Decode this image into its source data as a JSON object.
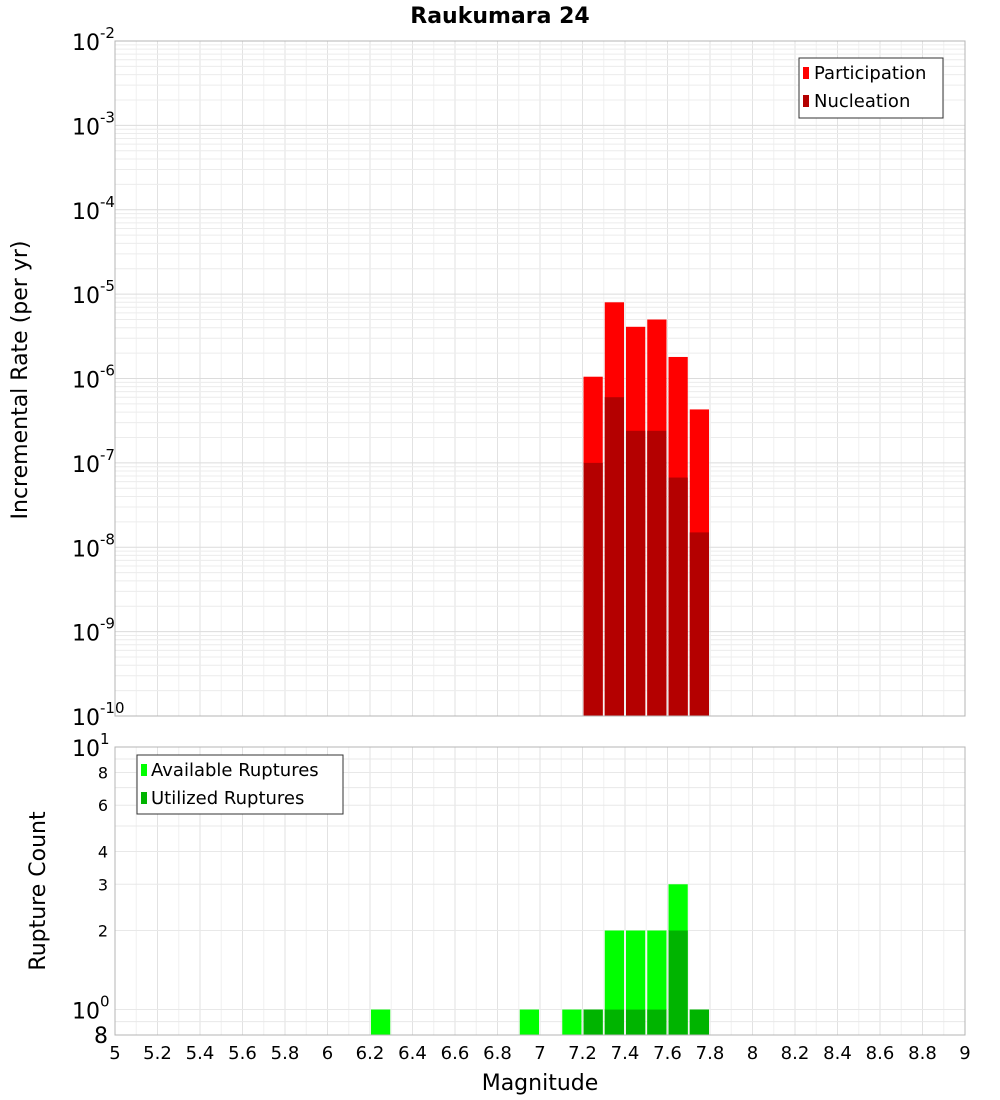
{
  "chart_data": [
    {
      "type": "bar",
      "title": "Raukumara 24",
      "xlabel": "Magnitude",
      "ylabel": "Incremental Rate (per yr)",
      "yscale": "log",
      "xlim": [
        5,
        9
      ],
      "ylim": [
        1e-10,
        0.01
      ],
      "y_ticks": [
        {
          "base": "10",
          "exp": "-10"
        },
        {
          "base": "10",
          "exp": "-9"
        },
        {
          "base": "10",
          "exp": "-8"
        },
        {
          "base": "10",
          "exp": "-7"
        },
        {
          "base": "10",
          "exp": "-6"
        },
        {
          "base": "10",
          "exp": "-5"
        },
        {
          "base": "10",
          "exp": "-4"
        },
        {
          "base": "10",
          "exp": "-3"
        },
        {
          "base": "10",
          "exp": "-2"
        }
      ],
      "bin_width": 0.1,
      "x": [
        7.25,
        7.35,
        7.45,
        7.55,
        7.65,
        7.75
      ],
      "series": [
        {
          "name": "Participation",
          "color": "#ff0000",
          "values": [
            1.05e-06,
            8e-06,
            4.1e-06,
            5e-06,
            1.8e-06,
            4.3e-07
          ]
        },
        {
          "name": "Nucleation",
          "color": "#b40000",
          "values": [
            1e-07,
            6e-07,
            2.4e-07,
            2.4e-07,
            6.7e-08,
            1.5e-08
          ]
        }
      ],
      "legend": "top-right",
      "grid": true
    },
    {
      "type": "bar",
      "xlabel": "Magnitude",
      "ylabel": "Rupture Count",
      "yscale": "log",
      "xlim": [
        5,
        9
      ],
      "ylim": [
        0.8,
        10
      ],
      "y_ticks": [
        {
          "value": 0.8,
          "label": "8",
          "exp": ""
        },
        {
          "value": 1,
          "label": "10",
          "exp": "0"
        },
        {
          "value": 2,
          "label": "2",
          "exp": ""
        },
        {
          "value": 3,
          "label": "3",
          "exp": ""
        },
        {
          "value": 4,
          "label": "4",
          "exp": ""
        },
        {
          "value": 6,
          "label": "6",
          "exp": ""
        },
        {
          "value": 8,
          "label": "8",
          "exp": ""
        },
        {
          "value": 10,
          "label": "10",
          "exp": "1"
        }
      ],
      "x_ticks": [
        "5",
        "5.2",
        "5.4",
        "5.6",
        "5.8",
        "6",
        "6.2",
        "6.4",
        "6.6",
        "6.8",
        "7",
        "7.2",
        "7.4",
        "7.6",
        "7.8",
        "8",
        "8.2",
        "8.4",
        "8.6",
        "8.8",
        "9"
      ],
      "bin_width": 0.1,
      "series": [
        {
          "name": "Available Ruptures",
          "color": "#00ff00",
          "x": [
            6.25,
            6.95,
            7.15,
            7.25,
            7.35,
            7.45,
            7.55,
            7.65,
            7.75
          ],
          "values": [
            1,
            1,
            1,
            1,
            2,
            2,
            2,
            3,
            1
          ]
        },
        {
          "name": "Utilized Ruptures",
          "color": "#00b400",
          "x": [
            7.25,
            7.35,
            7.45,
            7.55,
            7.65,
            7.75
          ],
          "values": [
            1,
            1,
            1,
            1,
            2,
            1
          ]
        }
      ],
      "legend": "top-left",
      "grid": true
    }
  ]
}
